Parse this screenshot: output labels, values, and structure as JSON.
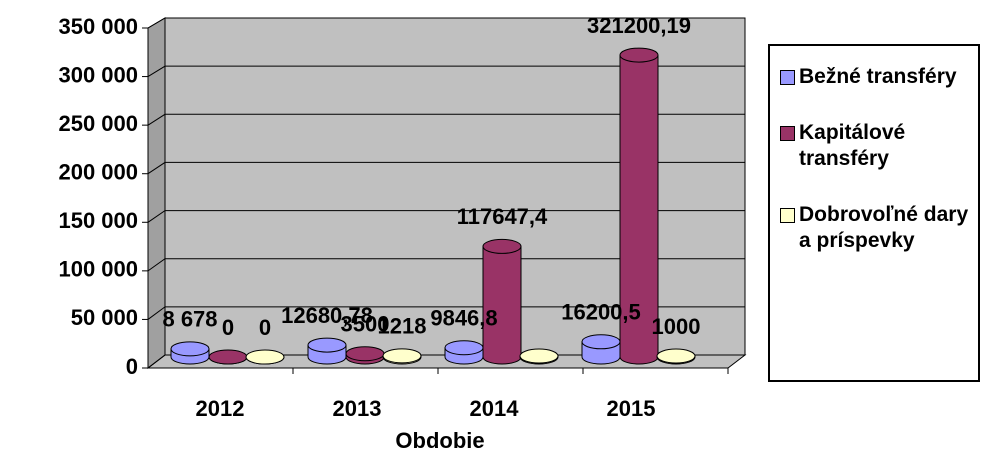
{
  "chart_data": {
    "type": "bar3d",
    "x_label": "Obdobie",
    "categories": [
      "2012",
      "2013",
      "2014",
      "2015"
    ],
    "series": [
      {
        "name": "Bežné transféry",
        "color": "#9999ff",
        "values": [
          8678,
          12680.78,
          9846.8,
          16200.5
        ],
        "value_labels": [
          "8 678",
          "12680,78",
          "9846,8",
          "16200,5"
        ]
      },
      {
        "name": "Kapitálové transféry",
        "color": "#993366",
        "values": [
          0,
          3500,
          117647.4,
          321200.19
        ],
        "value_labels": [
          "0",
          "3500",
          "117647,4",
          "321200,19"
        ]
      },
      {
        "name": "Dobrovoľné dary a príspevky",
        "color": "#ffffcc",
        "values": [
          0,
          1218,
          1000,
          1000
        ],
        "value_labels": [
          "0",
          "1218",
          null,
          "1000"
        ]
      }
    ],
    "ylim": [
      0,
      350000
    ],
    "yticks": [
      {
        "value": 0,
        "label": "0"
      },
      {
        "value": 50000,
        "label": "50 000"
      },
      {
        "value": 100000,
        "label": "100 000"
      },
      {
        "value": 150000,
        "label": "150 000"
      },
      {
        "value": 200000,
        "label": "200 000"
      },
      {
        "value": 250000,
        "label": "250 000"
      },
      {
        "value": 300000,
        "label": "300 000"
      },
      {
        "value": 350000,
        "label": "350 000"
      }
    ],
    "grid": true,
    "legend": "right"
  }
}
